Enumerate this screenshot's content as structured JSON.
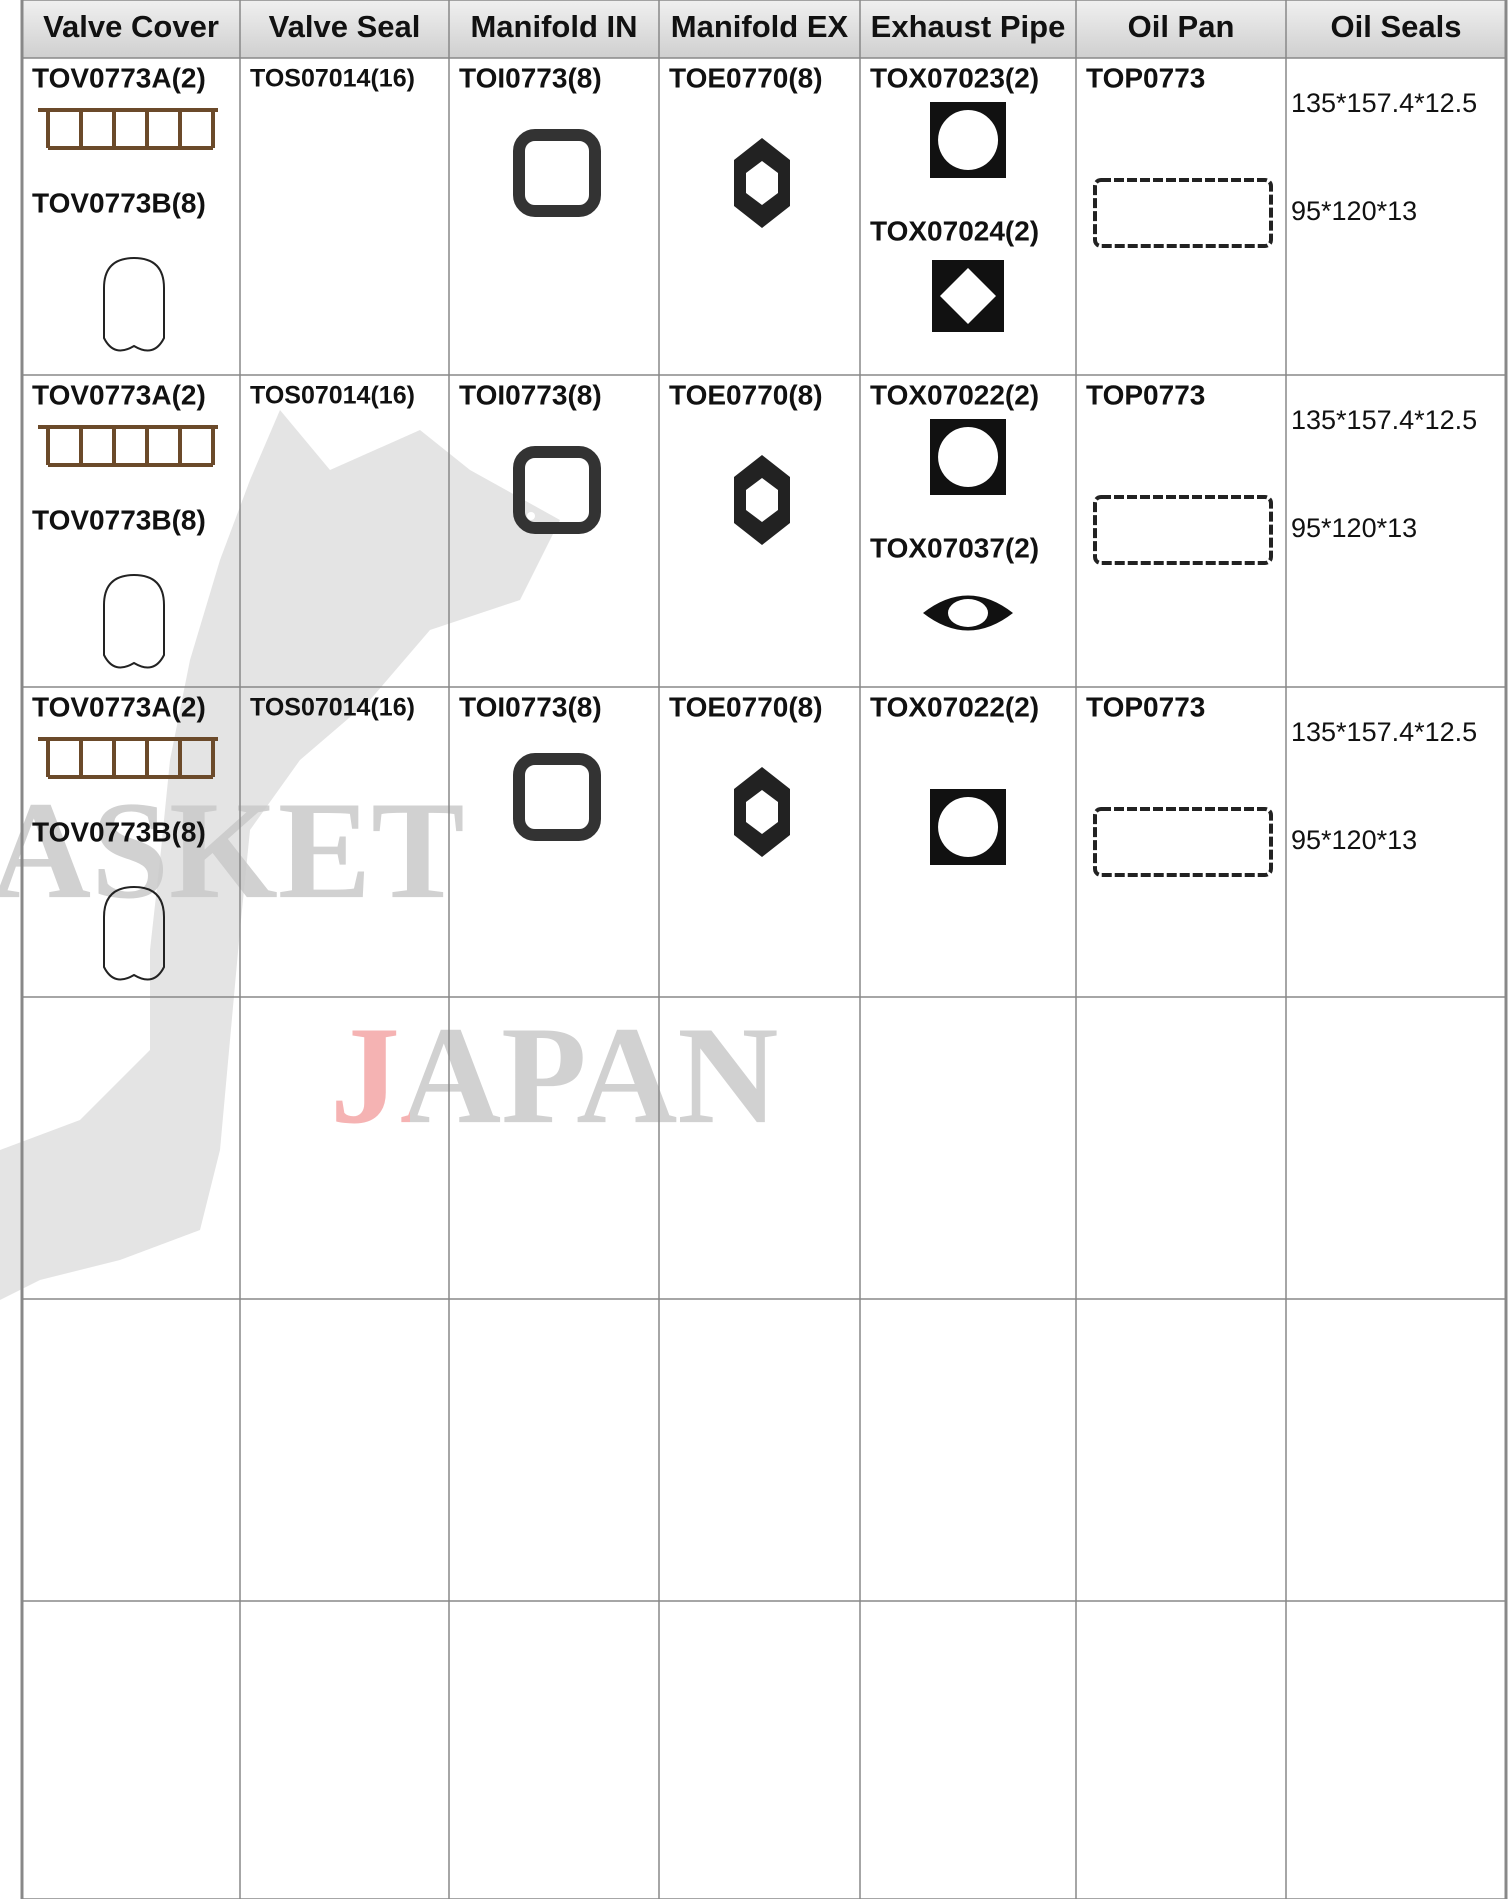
{
  "header": {
    "columns": [
      "Valve Cover",
      "Valve Seal",
      "Manifold IN",
      "Manifold EX",
      "Exhaust Pipe",
      "Oil Pan",
      "Oil Seals"
    ]
  },
  "rows": [
    {
      "cells": [
        [
          "TOV0773A(2)",
          "TOV0773B(8)"
        ],
        [
          "TOS07014(16)"
        ],
        [
          "TOI0773(8)"
        ],
        [
          "TOE0770(8)"
        ],
        [
          "TOX07023(2)",
          "TOX07024(2)"
        ],
        [
          "TOP0773"
        ],
        [
          "135*157.4*12.5",
          "95*120*13"
        ]
      ]
    },
    {
      "cells": [
        [
          "TOV0773A(2)",
          "TOV0773B(8)"
        ],
        [
          "TOS07014(16)"
        ],
        [
          "TOI0773(8)"
        ],
        [
          "TOE0770(8)"
        ],
        [
          "TOX07022(2)",
          "TOX07037(2)"
        ],
        [
          "TOP0773"
        ],
        [
          "135*157.4*12.5",
          "95*120*13"
        ]
      ]
    },
    {
      "cells": [
        [
          "TOV0773A(2)",
          "TOV0773B(8)"
        ],
        [
          "TOS07014(16)"
        ],
        [
          "TOI0773(8)"
        ],
        [
          "TOE0770(8)"
        ],
        [
          "TOX07022(2)"
        ],
        [
          "TOP0773"
        ],
        [
          "135*157.4*12.5",
          "95*120*13"
        ]
      ]
    }
  ],
  "watermark": [
    "ASKET",
    "JAPAN"
  ]
}
